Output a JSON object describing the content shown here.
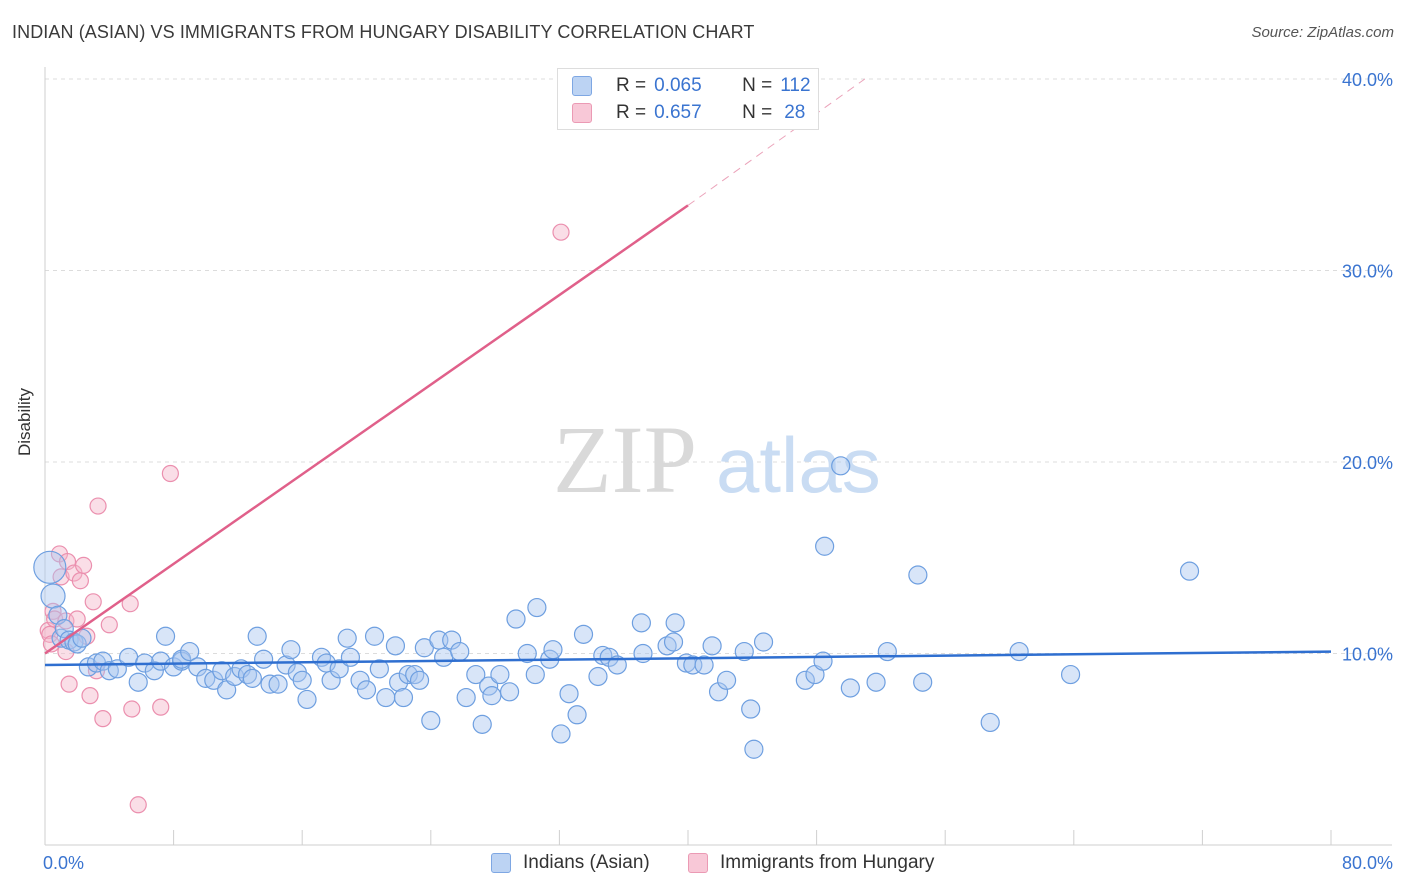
{
  "title": "INDIAN (ASIAN) VS IMMIGRANTS FROM HUNGARY DISABILITY CORRELATION CHART",
  "source": "Source: ZipAtlas.com",
  "watermark": {
    "zip": "ZIP",
    "atlas": "atlas"
  },
  "colors": {
    "blue": "#3a74d0",
    "blue_fill": "#a9c6ef",
    "pink": "#e0608a",
    "pink_fill": "#f4b6ca",
    "grid": "#dcdcdc"
  },
  "legend_top": {
    "series1": {
      "r_label": "R =",
      "r_value": "0.065",
      "n_label": "N =",
      "n_value": "112"
    },
    "series2": {
      "r_label": "R =",
      "r_value": "0.657",
      "n_label": "N =",
      "n_value": "28"
    }
  },
  "legend_bottom": {
    "series1": "Indians (Asian)",
    "series2": "Immigrants from Hungary"
  },
  "chart_data": {
    "type": "scatter",
    "title": "INDIAN (ASIAN) VS IMMIGRANTS FROM HUNGARY DISABILITY CORRELATION CHART",
    "xlabel": "",
    "ylabel": "Disability",
    "xlim": [
      0,
      80
    ],
    "ylim": [
      0,
      40
    ],
    "x_tick_labels": [
      "0.0%",
      "80.0%"
    ],
    "y_ticks": [
      10,
      20,
      30,
      40
    ],
    "y_tick_labels": [
      "10.0%",
      "20.0%",
      "30.0%",
      "40.0%"
    ],
    "grid": true,
    "legend_position": "top-center",
    "series": [
      {
        "name": "Indians (Asian)",
        "color": "#3a74d0",
        "trend": {
          "x": [
            0,
            80
          ],
          "y": [
            9.4,
            10.1
          ]
        },
        "points": [
          [
            0.3,
            14.5
          ],
          [
            0.5,
            13.0
          ],
          [
            0.8,
            12.0
          ],
          [
            1.0,
            10.8
          ],
          [
            1.2,
            11.3
          ],
          [
            1.5,
            10.7
          ],
          [
            1.8,
            10.6
          ],
          [
            2.0,
            10.5
          ],
          [
            2.3,
            10.8
          ],
          [
            2.7,
            9.3
          ],
          [
            3.2,
            9.5
          ],
          [
            3.6,
            9.6
          ],
          [
            4.0,
            9.1
          ],
          [
            4.5,
            9.2
          ],
          [
            5.2,
            9.8
          ],
          [
            5.8,
            8.5
          ],
          [
            6.2,
            9.5
          ],
          [
            6.8,
            9.1
          ],
          [
            7.2,
            9.6
          ],
          [
            7.5,
            10.9
          ],
          [
            8.0,
            9.3
          ],
          [
            8.5,
            9.6
          ],
          [
            8.5,
            9.7
          ],
          [
            9.0,
            10.1
          ],
          [
            9.5,
            9.3
          ],
          [
            10.0,
            8.7
          ],
          [
            10.5,
            8.6
          ],
          [
            11.0,
            9.1
          ],
          [
            11.3,
            8.1
          ],
          [
            11.8,
            8.8
          ],
          [
            12.2,
            9.2
          ],
          [
            12.6,
            8.9
          ],
          [
            12.9,
            8.7
          ],
          [
            13.2,
            10.9
          ],
          [
            13.6,
            9.7
          ],
          [
            14.0,
            8.4
          ],
          [
            14.5,
            8.4
          ],
          [
            15.0,
            9.4
          ],
          [
            15.3,
            10.2
          ],
          [
            15.7,
            9.0
          ],
          [
            16.0,
            8.6
          ],
          [
            16.3,
            7.6
          ],
          [
            17.2,
            9.8
          ],
          [
            17.5,
            9.5
          ],
          [
            17.8,
            8.6
          ],
          [
            18.3,
            9.2
          ],
          [
            18.8,
            10.8
          ],
          [
            19.0,
            9.8
          ],
          [
            19.6,
            8.6
          ],
          [
            20.0,
            8.1
          ],
          [
            20.5,
            10.9
          ],
          [
            20.8,
            9.2
          ],
          [
            21.2,
            7.7
          ],
          [
            21.8,
            10.4
          ],
          [
            22.0,
            8.5
          ],
          [
            22.3,
            7.7
          ],
          [
            22.6,
            8.9
          ],
          [
            23.0,
            8.9
          ],
          [
            23.3,
            8.6
          ],
          [
            23.6,
            10.3
          ],
          [
            24.0,
            6.5
          ],
          [
            24.5,
            10.7
          ],
          [
            24.8,
            9.8
          ],
          [
            25.3,
            10.7
          ],
          [
            25.8,
            10.1
          ],
          [
            26.2,
            7.7
          ],
          [
            26.8,
            8.9
          ],
          [
            27.2,
            6.3
          ],
          [
            27.6,
            8.3
          ],
          [
            27.8,
            7.8
          ],
          [
            28.3,
            8.9
          ],
          [
            28.9,
            8.0
          ],
          [
            29.3,
            11.8
          ],
          [
            30.0,
            10.0
          ],
          [
            30.5,
            8.9
          ],
          [
            30.6,
            12.4
          ],
          [
            31.4,
            9.7
          ],
          [
            31.6,
            10.2
          ],
          [
            32.1,
            5.8
          ],
          [
            32.6,
            7.9
          ],
          [
            33.1,
            6.8
          ],
          [
            33.5,
            11.0
          ],
          [
            34.4,
            8.8
          ],
          [
            34.7,
            9.9
          ],
          [
            35.1,
            9.8
          ],
          [
            35.6,
            9.4
          ],
          [
            37.1,
            11.6
          ],
          [
            37.2,
            10.0
          ],
          [
            38.7,
            10.4
          ],
          [
            39.1,
            10.6
          ],
          [
            39.2,
            11.6
          ],
          [
            39.9,
            9.5
          ],
          [
            40.3,
            9.4
          ],
          [
            41.0,
            9.4
          ],
          [
            41.5,
            10.4
          ],
          [
            41.9,
            8.0
          ],
          [
            42.4,
            8.6
          ],
          [
            43.5,
            10.1
          ],
          [
            43.9,
            7.1
          ],
          [
            44.1,
            5.0
          ],
          [
            44.7,
            10.6
          ],
          [
            47.3,
            8.6
          ],
          [
            47.9,
            8.9
          ],
          [
            48.4,
            9.6
          ],
          [
            48.5,
            15.6
          ],
          [
            49.5,
            19.8
          ],
          [
            50.1,
            8.2
          ],
          [
            51.7,
            8.5
          ],
          [
            52.4,
            10.1
          ],
          [
            54.3,
            14.1
          ],
          [
            54.6,
            8.5
          ],
          [
            58.8,
            6.4
          ],
          [
            60.6,
            10.1
          ],
          [
            63.8,
            8.9
          ],
          [
            71.2,
            14.3
          ]
        ]
      },
      {
        "name": "Immigrants from Hungary",
        "color": "#e0608a",
        "trend": {
          "x": [
            0,
            40
          ],
          "y": [
            10.0,
            33.4
          ]
        },
        "trend_extension": {
          "x": [
            40,
            51
          ],
          "y": [
            33.4,
            40.0
          ]
        },
        "points": [
          [
            0.2,
            11.2
          ],
          [
            0.3,
            11.0
          ],
          [
            0.4,
            10.5
          ],
          [
            0.5,
            12.2
          ],
          [
            0.6,
            11.8
          ],
          [
            0.9,
            15.2
          ],
          [
            1.0,
            14.0
          ],
          [
            1.3,
            11.7
          ],
          [
            1.3,
            10.1
          ],
          [
            1.4,
            14.8
          ],
          [
            1.5,
            8.4
          ],
          [
            1.8,
            14.2
          ],
          [
            2.0,
            11.8
          ],
          [
            2.2,
            13.8
          ],
          [
            2.4,
            14.6
          ],
          [
            2.6,
            10.9
          ],
          [
            2.8,
            7.8
          ],
          [
            3.0,
            12.7
          ],
          [
            3.2,
            9.1
          ],
          [
            3.3,
            17.7
          ],
          [
            3.6,
            6.6
          ],
          [
            4.0,
            11.5
          ],
          [
            5.3,
            12.6
          ],
          [
            5.4,
            7.1
          ],
          [
            5.8,
            2.1
          ],
          [
            7.2,
            7.2
          ],
          [
            7.8,
            19.4
          ],
          [
            32.1,
            32.0
          ]
        ]
      }
    ]
  }
}
